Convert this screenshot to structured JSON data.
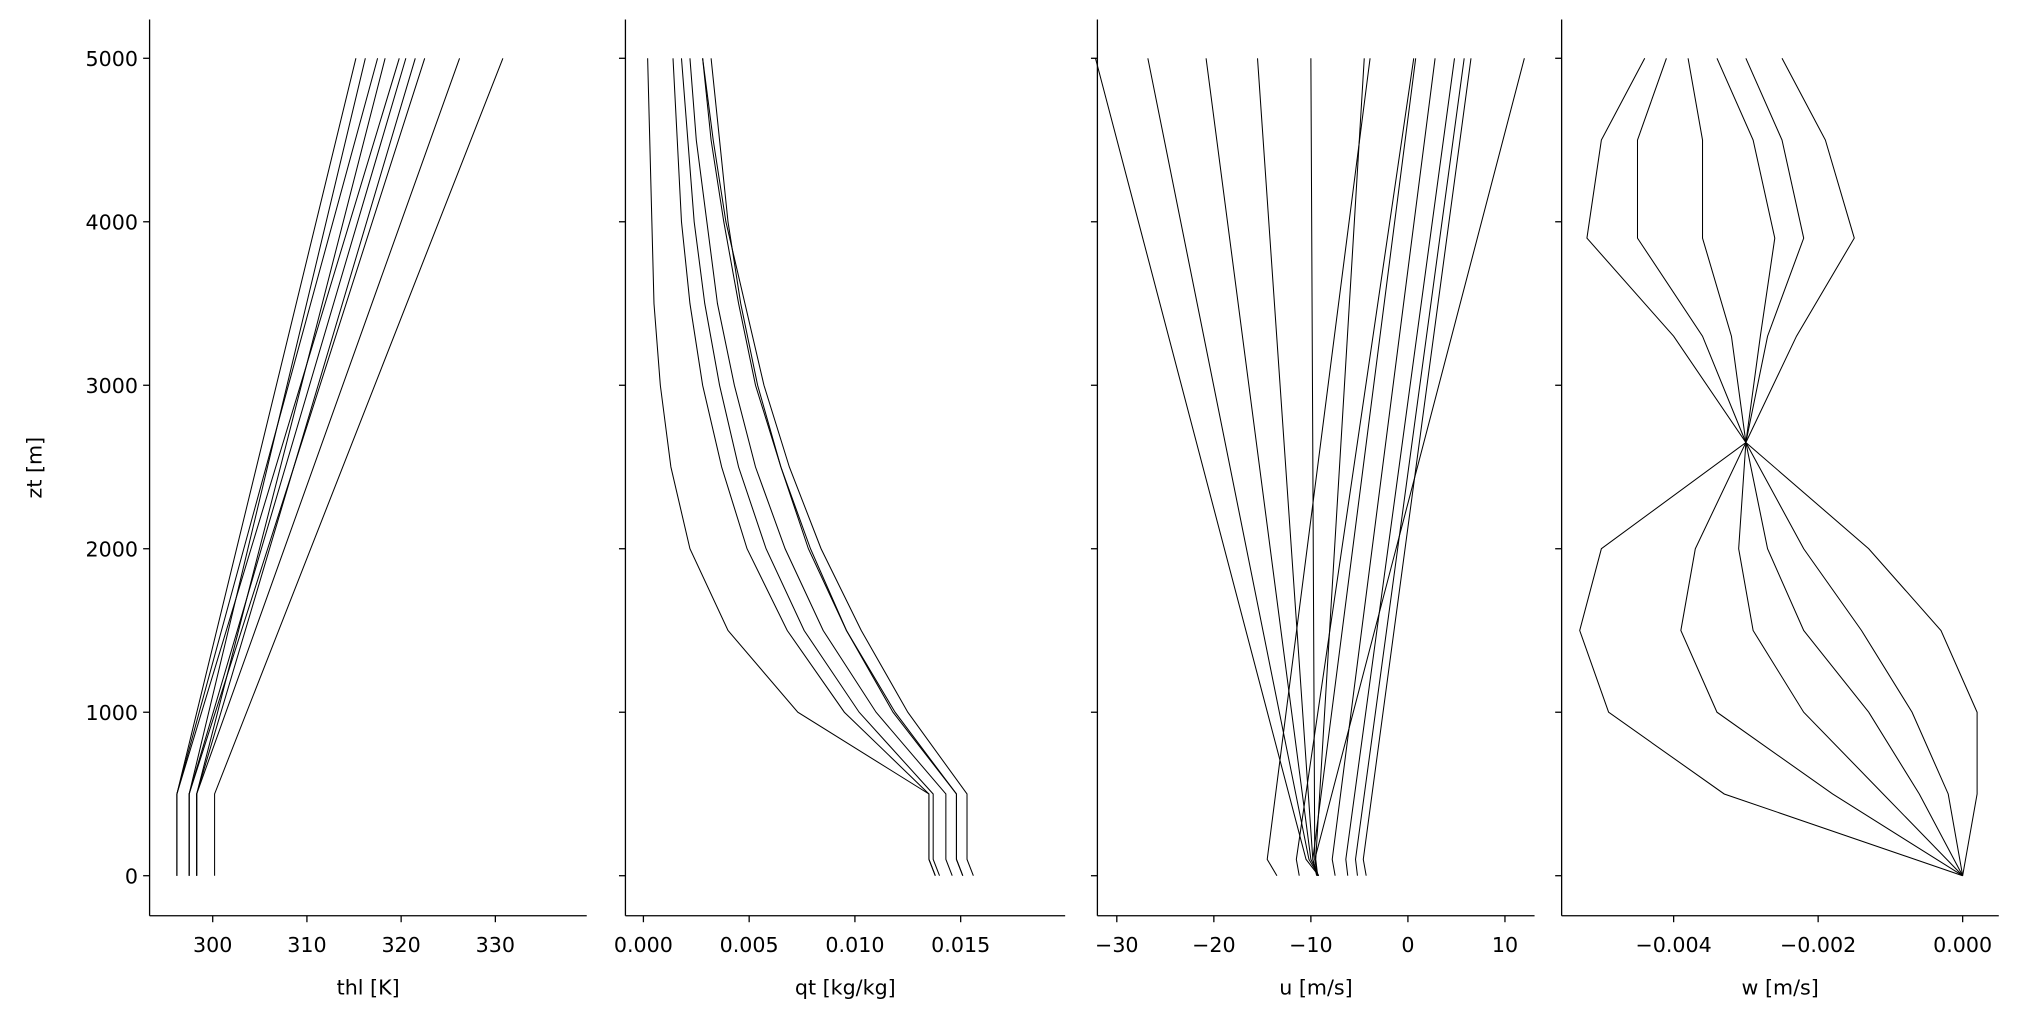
{
  "chart_data": [
    {
      "type": "line",
      "xlabel": "thl [K]",
      "ylabel": "zt [m]",
      "color": "#000000",
      "xlim": [
        293.3,
        339.7
      ],
      "xticks": [
        300,
        310,
        320,
        330
      ],
      "ylim": [
        -245,
        5237
      ],
      "yticks": [
        0,
        1000,
        2000,
        3000,
        4000,
        5000
      ],
      "y": [
        0,
        500,
        5000
      ],
      "series": [
        {
          "values": [
            296.2,
            296.2,
            315.2
          ]
        },
        {
          "values": [
            296.2,
            296.2,
            317.5
          ]
        },
        {
          "values": [
            296.2,
            296.2,
            319.8
          ]
        },
        {
          "values": [
            297.5,
            297.5,
            316.2
          ]
        },
        {
          "values": [
            297.5,
            297.5,
            320.5
          ]
        },
        {
          "values": [
            297.5,
            297.5,
            322.5
          ]
        },
        {
          "values": [
            298.3,
            298.3,
            318.3
          ]
        },
        {
          "values": [
            298.3,
            298.3,
            321.5
          ]
        },
        {
          "values": [
            298.3,
            298.3,
            326.2
          ]
        },
        {
          "values": [
            300.2,
            300.2,
            330.8
          ]
        }
      ]
    },
    {
      "type": "line",
      "xlabel": "qt [kg/kg]",
      "color": "#000000",
      "xlim": [
        -0.00085,
        0.01994
      ],
      "xticks": [
        {
          "value": 0,
          "label": "0.000"
        },
        0.005,
        {
          "value": 0.01,
          "label": "0.010"
        },
        0.015
      ],
      "y": [
        0,
        100,
        500,
        1000,
        1500,
        2000,
        2500,
        3000,
        3500,
        4000,
        4500,
        5000
      ],
      "series": [
        {
          "values": [
            0.0138,
            0.0135,
            0.0135,
            0.0073,
            0.004,
            0.0022,
            0.0013,
            0.0008,
            0.0005,
            0.0004,
            0.0003,
            0.0002
          ]
        },
        {
          "values": [
            0.0138,
            0.0135,
            0.0135,
            0.0095,
            0.0068,
            0.0049,
            0.0037,
            0.0028,
            0.0022,
            0.0018,
            0.0016,
            0.0014
          ]
        },
        {
          "values": [
            0.014,
            0.0137,
            0.0137,
            0.0102,
            0.0076,
            0.0058,
            0.0045,
            0.0036,
            0.0029,
            0.0024,
            0.0021,
            0.0018
          ]
        },
        {
          "values": [
            0.0146,
            0.0143,
            0.0143,
            0.011,
            0.0085,
            0.0067,
            0.0053,
            0.0043,
            0.0035,
            0.003,
            0.0025,
            0.0022
          ]
        },
        {
          "values": [
            0.0151,
            0.0148,
            0.0148,
            0.0118,
            0.0096,
            0.0078,
            0.0065,
            0.0054,
            0.0046,
            0.004,
            0.0036,
            0.0032
          ]
        },
        {
          "values": [
            0.0151,
            0.0148,
            0.0148,
            0.0119,
            0.0096,
            0.0079,
            0.0065,
            0.0053,
            0.0045,
            0.0038,
            0.0032,
            0.0028
          ]
        },
        {
          "values": [
            0.0156,
            0.0153,
            0.0153,
            0.0125,
            0.0103,
            0.0084,
            0.0069,
            0.0057,
            0.0048,
            0.0039,
            0.0033,
            0.0028
          ]
        }
      ]
    },
    {
      "type": "line",
      "xlabel": "u [m/s]",
      "color": "#000000",
      "xlim": [
        -32.0,
        13.05
      ],
      "xticks": [
        {
          "value": -30,
          "label": "−30"
        },
        {
          "value": -20,
          "label": "−20"
        },
        {
          "value": -10,
          "label": "−10"
        },
        0,
        10
      ],
      "y": [
        0,
        100,
        5000
      ],
      "series": [
        {
          "values": [
            -13.5,
            -14.5,
            -3.9
          ]
        },
        {
          "values": [
            -9.2,
            -10.5,
            -32.2
          ]
        },
        {
          "values": [
            -9.2,
            -10.2,
            -26.8
          ]
        },
        {
          "values": [
            -9.2,
            -10.0,
            -20.8
          ]
        },
        {
          "values": [
            -9.3,
            -9.8,
            -15.5
          ]
        },
        {
          "values": [
            -9.3,
            -9.6,
            -10.0
          ]
        },
        {
          "values": [
            -9.3,
            -9.5,
            -4.5
          ]
        },
        {
          "values": [
            -9.4,
            -9.8,
            0.8
          ]
        },
        {
          "values": [
            -11.2,
            -11.5,
            0.6
          ]
        },
        {
          "values": [
            -7.5,
            -7.8,
            2.8
          ]
        },
        {
          "values": [
            -6.2,
            -6.4,
            4.8
          ]
        },
        {
          "values": [
            -5.2,
            -5.4,
            5.8
          ]
        },
        {
          "values": [
            -4.3,
            -4.6,
            6.5
          ]
        },
        {
          "values": [
            -9.3,
            -9.6,
            12.0
          ]
        }
      ]
    },
    {
      "type": "line",
      "xlabel": "w [m/s]",
      "color": "#000000",
      "xlim": [
        -0.00555,
        0.0005
      ],
      "xticks": [
        {
          "value": -0.004,
          "label": "−0.004"
        },
        {
          "value": -0.002,
          "label": "−0.002"
        },
        {
          "value": 0,
          "label": "0.000"
        }
      ],
      "y": [
        0,
        500,
        1000,
        1500,
        2000,
        2650,
        3300,
        3900,
        4500,
        5000
      ],
      "series": [
        {
          "values": [
            0,
            -0.0033,
            -0.0049,
            -0.0053,
            -0.005,
            -0.003,
            -0.0023,
            -0.0015,
            -0.0019,
            -0.0025
          ]
        },
        {
          "values": [
            0,
            -0.0018,
            -0.0034,
            -0.0039,
            -0.0037,
            -0.003,
            -0.0027,
            -0.0022,
            -0.0025,
            -0.003
          ]
        },
        {
          "values": [
            0,
            -0.0011,
            -0.0022,
            -0.0029,
            -0.0031,
            -0.003,
            -0.0028,
            -0.0026,
            -0.0029,
            -0.0034
          ]
        },
        {
          "values": [
            0,
            -0.0006,
            -0.0013,
            -0.0022,
            -0.0027,
            -0.003,
            -0.0032,
            -0.0036,
            -0.0036,
            -0.0038
          ]
        },
        {
          "values": [
            0,
            -0.0002,
            -0.0007,
            -0.0014,
            -0.0022,
            -0.003,
            -0.0036,
            -0.0045,
            -0.0045,
            -0.0041
          ]
        },
        {
          "values": [
            0,
            0.0002,
            0.0002,
            -0.0003,
            -0.0013,
            -0.003,
            -0.004,
            -0.0052,
            -0.005,
            -0.0044
          ]
        }
      ]
    }
  ]
}
